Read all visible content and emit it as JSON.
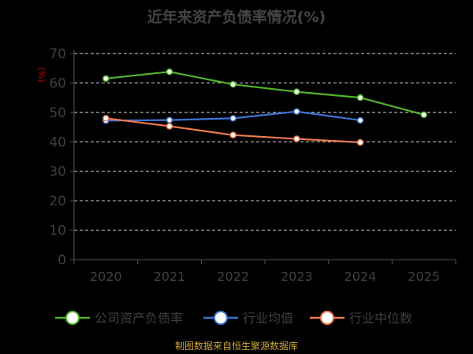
{
  "chart_data": {
    "type": "line",
    "title": "近年来资产负债率情况(%)",
    "unit_label": "(%)",
    "categories": [
      "2020",
      "2021",
      "2022",
      "2023",
      "2024",
      "2025"
    ],
    "yticks": [
      "0",
      "10",
      "20",
      "30",
      "40",
      "50",
      "60",
      "70"
    ],
    "ylim": [
      0,
      70
    ],
    "grid": true,
    "legend_position": "bottom",
    "series": [
      {
        "name": "公司资产负债率",
        "color": "#52b52a",
        "values": [
          61.5,
          63.8,
          59.5,
          57.0,
          55.0,
          49.2
        ]
      },
      {
        "name": "行业均值",
        "color": "#3f72d8",
        "values": [
          47.2,
          47.4,
          48.0,
          50.3,
          47.3,
          null
        ]
      },
      {
        "name": "行业中位数",
        "color": "#f07a4e",
        "values": [
          48.0,
          45.3,
          42.3,
          41.0,
          39.8,
          null
        ]
      }
    ],
    "source": "制图数据来自恒生聚源数据库"
  }
}
